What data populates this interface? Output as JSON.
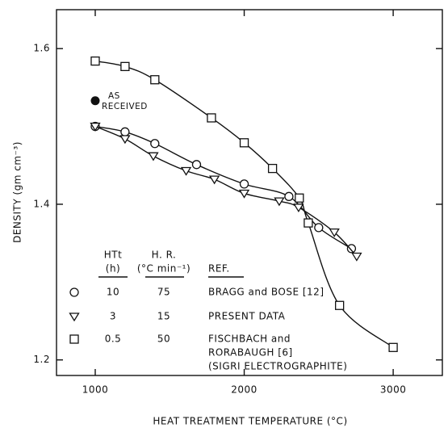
{
  "chart_data": {
    "type": "line",
    "x_label": "HEAT TREATMENT TEMPERATURE (°C)",
    "y_label": "DENSITY (gm cm⁻³)",
    "xlim": [
      740,
      3330
    ],
    "ylim": [
      1.18,
      1.65
    ],
    "xticks": [
      1000,
      2000,
      3000
    ],
    "yticks": [
      {
        "value": 1.2,
        "label": "1.2"
      },
      {
        "value": 1.4,
        "label": "1.4"
      },
      {
        "value": 1.6,
        "label": "1.6"
      }
    ],
    "series": [
      {
        "name": "BRAGG and BOSE [12]",
        "marker": "circle",
        "color": "#111",
        "x": [
          1000,
          1200,
          1400,
          1680,
          2000,
          2300,
          2500,
          2720
        ],
        "values": [
          1.5,
          1.493,
          1.478,
          1.451,
          1.426,
          1.41,
          1.37,
          1.343
        ]
      },
      {
        "name": "PRESENT DATA",
        "marker": "triangle",
        "color": "#111",
        "x": [
          1000,
          1200,
          1390,
          1610,
          1800,
          2000,
          2235,
          2365,
          2605,
          2755
        ],
        "values": [
          1.5,
          1.484,
          1.462,
          1.443,
          1.432,
          1.414,
          1.404,
          1.396,
          1.364,
          1.333
        ]
      },
      {
        "name": "FISCHBACH and",
        "marker": "square",
        "color": "#111",
        "x": [
          1000,
          1200,
          1400,
          1780,
          2000,
          2190,
          2370,
          2430,
          2640,
          3000
        ],
        "values": [
          1.584,
          1.577,
          1.56,
          1.511,
          1.479,
          1.446,
          1.408,
          1.376,
          1.27,
          1.216
        ]
      }
    ],
    "point": {
      "label": [
        "AS",
        "RECEIVED"
      ],
      "x": 1000,
      "value": 1.533
    },
    "legend": {
      "headers": [
        [
          "HTt",
          "(h)"
        ],
        [
          "H. R.",
          "(°C min⁻¹)"
        ],
        [
          "REF."
        ]
      ],
      "rows": [
        {
          "htt": "10",
          "hr": "75"
        },
        {
          "htt": "3",
          "hr": "15"
        },
        {
          "htt": "0.5",
          "hr": "50",
          "note": [
            "RORABAUGH [6]",
            "(SIGRI ELECTROGRAPHITE)"
          ]
        }
      ]
    }
  }
}
